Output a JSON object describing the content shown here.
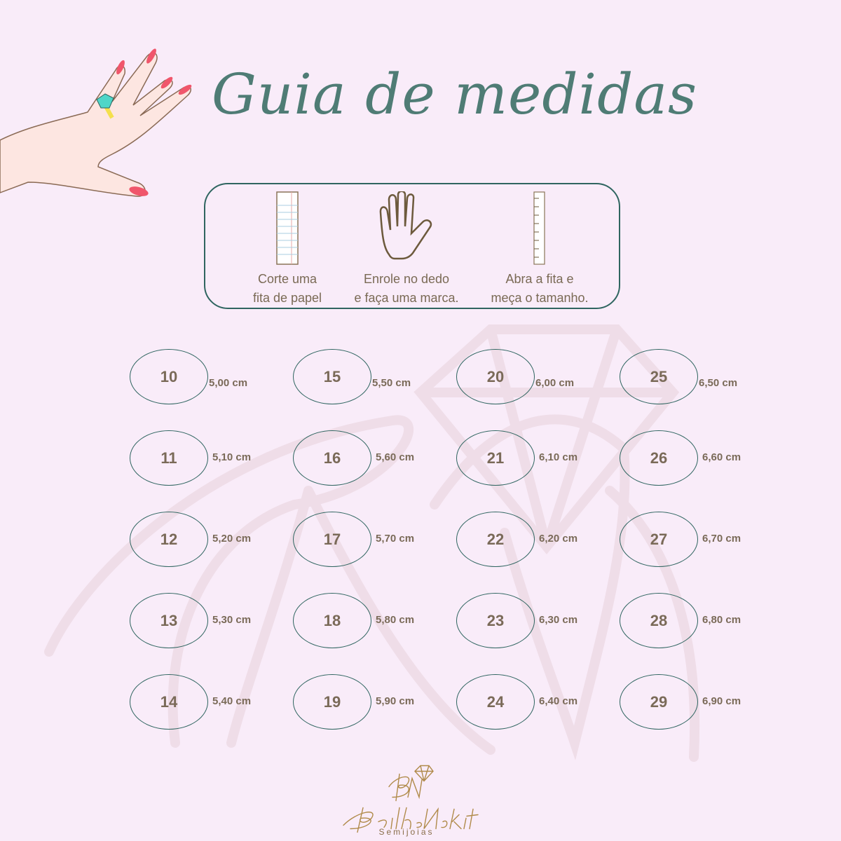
{
  "title": "Guia de medidas",
  "colors": {
    "background": "#f9ecf9",
    "title": "#4f7c75",
    "ring_border": "#2f6560",
    "text": "#7a6a58",
    "logo_gold": "#b08a4a"
  },
  "steps": [
    {
      "icon": "paper-strip-icon",
      "line1": "Corte uma",
      "line2": "fita de papel"
    },
    {
      "icon": "hand-icon",
      "line1": "Enrole no dedo",
      "line2": "e faça uma marca."
    },
    {
      "icon": "ruler-icon",
      "line1": "Abra a fita e",
      "line2": "meça o tamanho."
    }
  ],
  "sizes": [
    {
      "size": "10",
      "cm": "5,00 cm"
    },
    {
      "size": "11",
      "cm": "5,10 cm"
    },
    {
      "size": "12",
      "cm": "5,20 cm"
    },
    {
      "size": "13",
      "cm": "5,30 cm"
    },
    {
      "size": "14",
      "cm": "5,40 cm"
    },
    {
      "size": "15",
      "cm": "5,50 cm"
    },
    {
      "size": "16",
      "cm": "5,60 cm"
    },
    {
      "size": "17",
      "cm": "5,70 cm"
    },
    {
      "size": "18",
      "cm": "5,80 cm"
    },
    {
      "size": "19",
      "cm": "5,90 cm"
    },
    {
      "size": "20",
      "cm": "6,00 cm"
    },
    {
      "size": "21",
      "cm": "6,10 cm"
    },
    {
      "size": "22",
      "cm": "6,20 cm"
    },
    {
      "size": "23",
      "cm": "6,30 cm"
    },
    {
      "size": "24",
      "cm": "6,40 cm"
    },
    {
      "size": "25",
      "cm": "6,50 cm"
    },
    {
      "size": "26",
      "cm": "6,60 cm"
    },
    {
      "size": "27",
      "cm": "6,70 cm"
    },
    {
      "size": "28",
      "cm": "6,80 cm"
    },
    {
      "size": "29",
      "cm": "6,90 cm"
    }
  ],
  "logo": {
    "monogram": "BN",
    "name": "BrilheNakit",
    "tagline": "Semijoias"
  }
}
